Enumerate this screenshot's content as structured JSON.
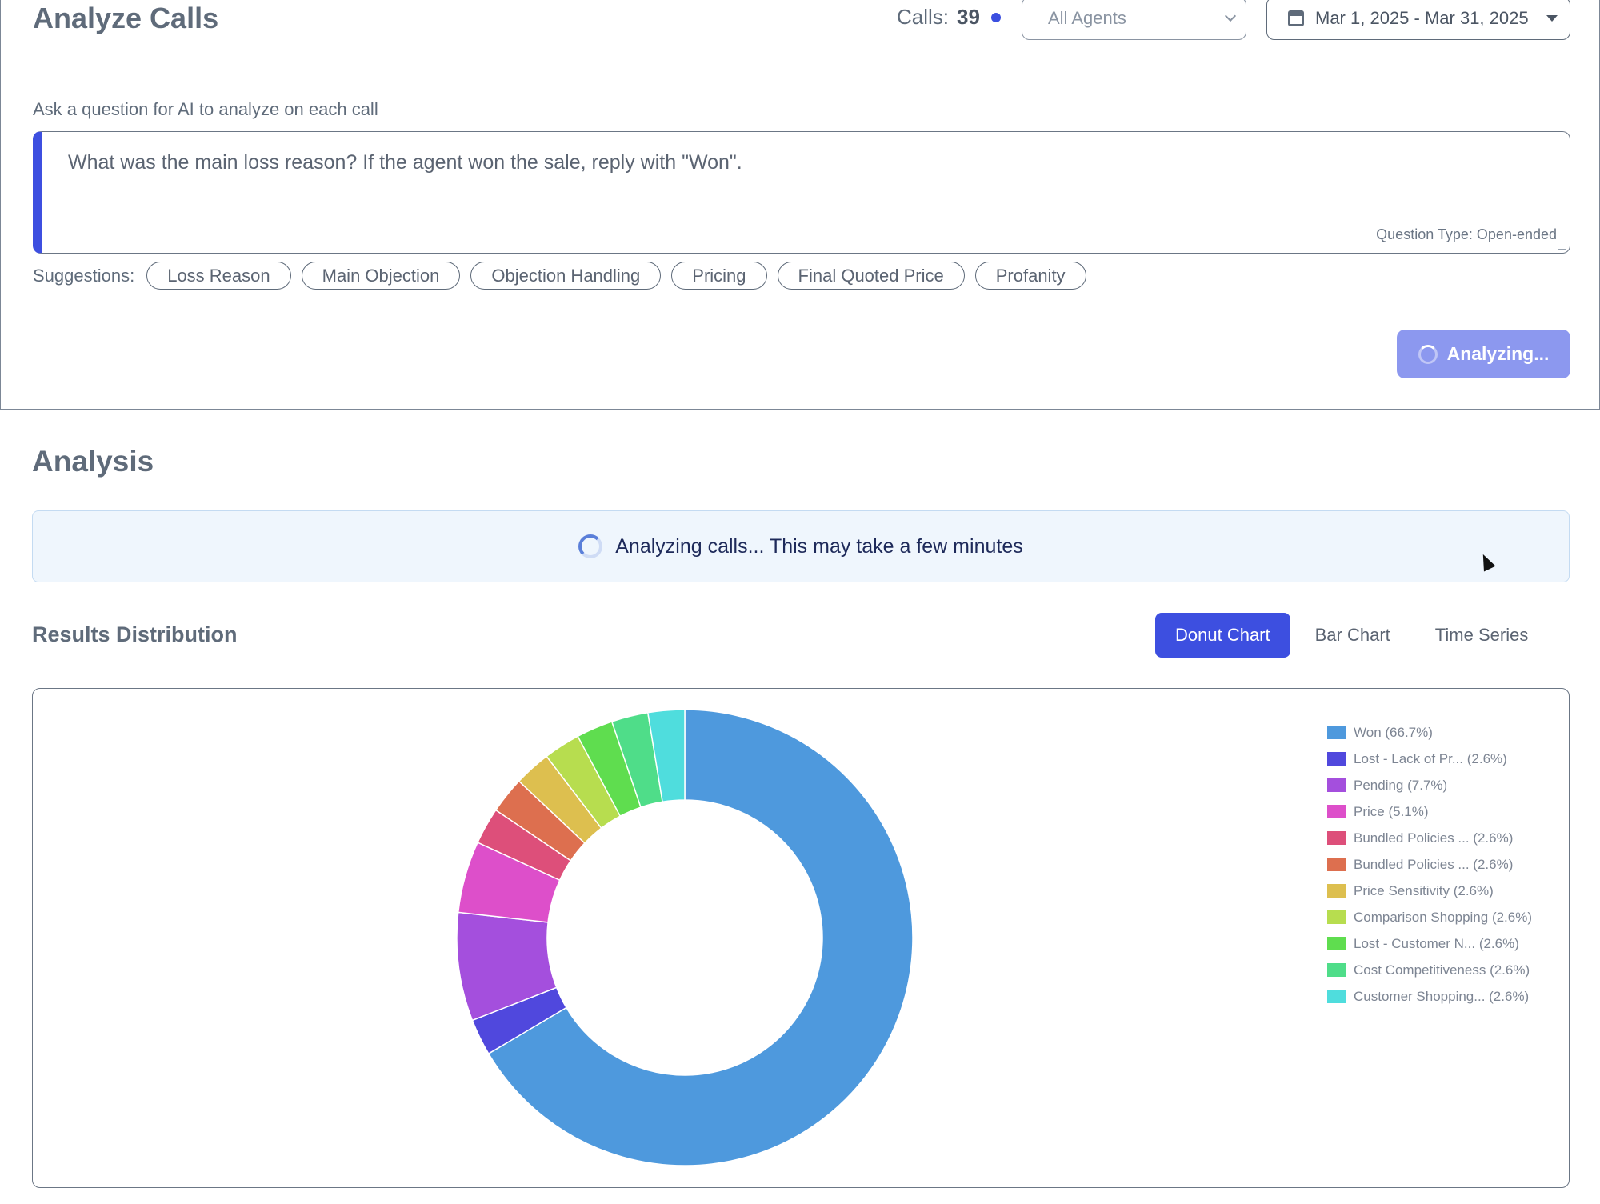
{
  "header": {
    "title": "Analyze Calls",
    "calls_label": "Calls:",
    "calls_count": "39",
    "agent_select": "All Agents",
    "date_range": "Mar 1, 2025 - Mar 31, 2025"
  },
  "prompt": {
    "label": "Ask a question for AI to analyze on each call",
    "question": "What was the main loss reason? If the agent won the sale, reply with \"Won\".",
    "question_type": "Question Type: Open-ended"
  },
  "suggestions": {
    "label": "Suggestions:",
    "items": [
      "Loss Reason",
      "Main Objection",
      "Objection Handling",
      "Pricing",
      "Final Quoted Price",
      "Profanity"
    ]
  },
  "analyze_button": "Analyzing...",
  "analysis": {
    "title": "Analysis",
    "status": "Analyzing calls... This may take a few minutes"
  },
  "results": {
    "title": "Results Distribution",
    "tabs": [
      "Donut Chart",
      "Bar Chart",
      "Time Series"
    ],
    "active_tab": "Donut Chart"
  },
  "chart_data": {
    "type": "pie",
    "donut": true,
    "legend_position": "right",
    "slices": [
      {
        "label": "Won (66.7%)",
        "value": 66.7,
        "color": "#4e99dd"
      },
      {
        "label": "Lost - Lack of Pr... (2.6%)",
        "value": 2.6,
        "color": "#5048dd"
      },
      {
        "label": "Pending (7.7%)",
        "value": 7.7,
        "color": "#a44fdd"
      },
      {
        "label": "Price (5.1%)",
        "value": 5.1,
        "color": "#dd4fca"
      },
      {
        "label": "Bundled Policies ... (2.6%)",
        "value": 2.6,
        "color": "#dd4f7a"
      },
      {
        "label": "Bundled Policies ... (2.6%)",
        "value": 2.6,
        "color": "#dd6f4f"
      },
      {
        "label": "Price Sensitivity (2.6%)",
        "value": 2.6,
        "color": "#ddbf4f"
      },
      {
        "label": "Comparison Shopping (2.6%)",
        "value": 2.6,
        "color": "#b7dd4f"
      },
      {
        "label": "Lost - Customer N... (2.6%)",
        "value": 2.6,
        "color": "#5fdd4f"
      },
      {
        "label": "Cost Competitiveness (2.6%)",
        "value": 2.6,
        "color": "#4fdd89"
      },
      {
        "label": "Customer Shopping... (2.6%)",
        "value": 2.6,
        "color": "#4fdddd"
      }
    ]
  }
}
